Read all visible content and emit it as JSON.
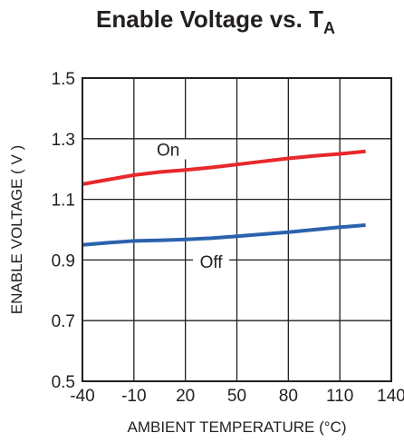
{
  "chart_data": {
    "type": "line",
    "title": "Enable Voltage vs. T",
    "title_subscript": "A",
    "xlabel": "AMBIENT TEMPERATURE (°C)",
    "ylabel": "ENABLE VOLTAGE ( V )",
    "xlim": [
      -40,
      140
    ],
    "ylim": [
      0.5,
      1.5
    ],
    "xticks": [
      "-40",
      "-10",
      "20",
      "50",
      "80",
      "110",
      "140"
    ],
    "yticks": [
      "0.5",
      "0.7",
      "0.9",
      "1.1",
      "1.3",
      "1.5"
    ],
    "grid": true,
    "legend": "inline labels",
    "series": [
      {
        "name": "On",
        "color": "#e8282b",
        "x": [
          -40,
          -25,
          -10,
          5,
          20,
          35,
          50,
          65,
          80,
          95,
          110,
          125
        ],
        "y": [
          1.15,
          1.165,
          1.18,
          1.19,
          1.197,
          1.205,
          1.215,
          1.225,
          1.235,
          1.243,
          1.25,
          1.258
        ]
      },
      {
        "name": "Off",
        "color": "#2b62ad",
        "x": [
          -40,
          -25,
          -10,
          5,
          20,
          35,
          50,
          65,
          80,
          95,
          110,
          125
        ],
        "y": [
          0.95,
          0.957,
          0.963,
          0.965,
          0.968,
          0.972,
          0.978,
          0.985,
          0.992,
          1.0,
          1.008,
          1.015
        ]
      }
    ]
  }
}
